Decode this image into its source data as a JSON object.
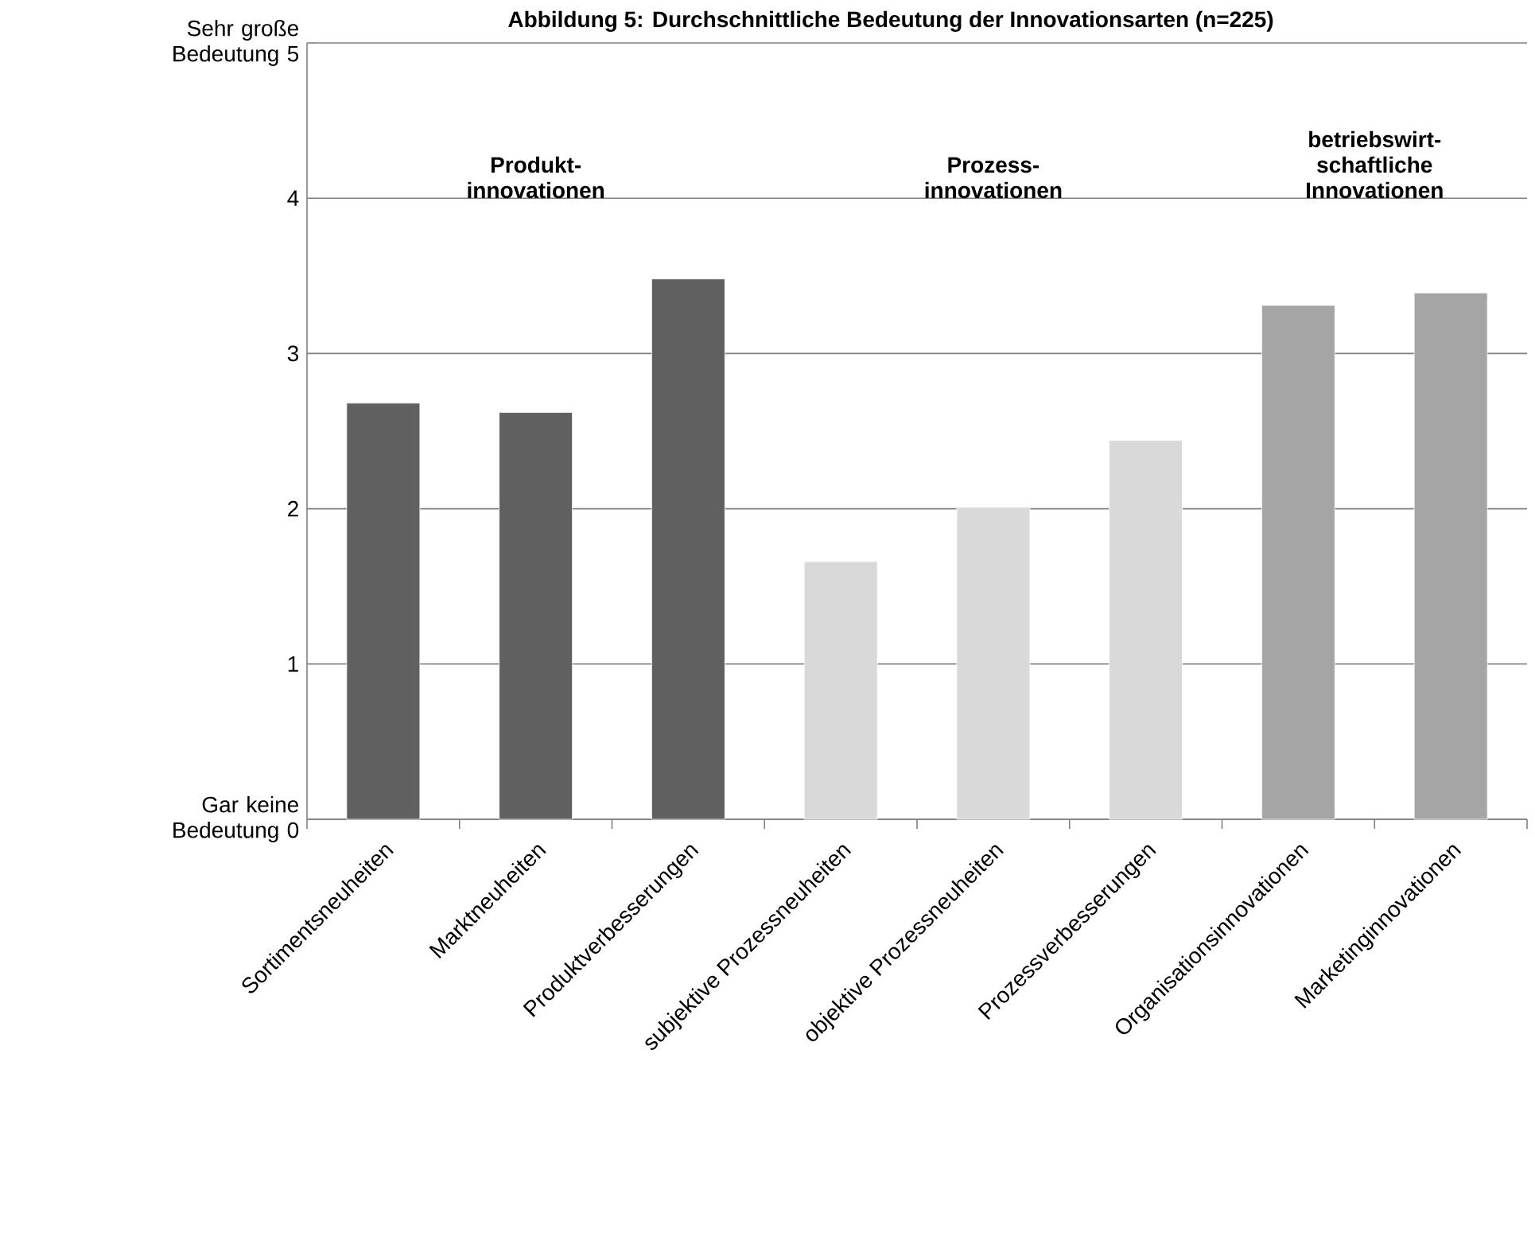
{
  "chart_data": {
    "type": "bar",
    "title": "Abbildung 5: Durchschnittliche Bedeutung der Innovationsarten (n=225)",
    "categories": [
      "Sortimentsneuheiten",
      "Marktneuheiten",
      "Produktverbesserungen",
      "subjektive Prozessneuheiten",
      "objektive Prozessneuheiten",
      "Prozessverbesserungen",
      "Organisationsinnovationen",
      "Marketinginnovationen"
    ],
    "values": [
      2.68,
      2.62,
      3.48,
      1.66,
      2.01,
      2.44,
      3.31,
      3.39
    ],
    "colors": [
      "#606060",
      "#606060",
      "#606060",
      "#d9d9d9",
      "#d9d9d9",
      "#d9d9d9",
      "#a5a5a5",
      "#a5a5a5"
    ],
    "ylim": [
      0,
      5
    ],
    "yticks": [
      {
        "value": 0,
        "label": "Gar keine Bedeutung 0"
      },
      1,
      2,
      3,
      4,
      {
        "value": 5,
        "label": "Sehr große Bedeutung 5"
      }
    ],
    "grid": "y",
    "annotations": [
      "Produkt-innovationen",
      "Prozess-innovationen",
      "betriebswirt-schaftliche Innovationen"
    ]
  }
}
